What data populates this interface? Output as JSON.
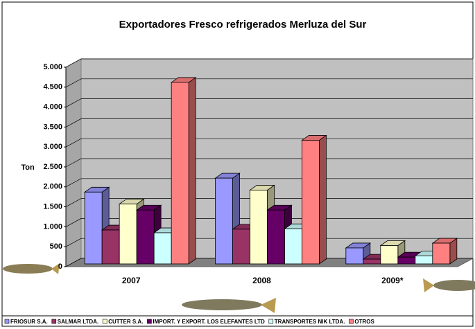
{
  "chart_data": {
    "type": "bar3d",
    "title": "Exportadores Fresco refrigerados Merluza del Sur",
    "y_label": "Ton",
    "categories": [
      "2007",
      "2008",
      "2009*"
    ],
    "series": [
      {
        "name": "FRIOSUR S.A.",
        "color": "#9999ff",
        "values": [
          1800,
          2150,
          400
        ]
      },
      {
        "name": "SALMAR LTDA.",
        "color": "#993366",
        "values": [
          850,
          870,
          120
        ]
      },
      {
        "name": "CUTTER S.A.",
        "color": "#ffffcc",
        "values": [
          1500,
          1850,
          460
        ]
      },
      {
        "name": "IMPORT. Y EXPORT. LOS ELEFANTES LTD",
        "color": "#660066",
        "values": [
          1350,
          1350,
          170
        ]
      },
      {
        "name": "TRANSPORTES NIK LTDA.",
        "color": "#ccffff",
        "values": [
          780,
          880,
          200
        ]
      },
      {
        "name": "OTROS",
        "color": "#ff8080",
        "values": [
          4550,
          3100,
          520
        ]
      }
    ],
    "ylim": [
      0,
      5000
    ],
    "yticks": [
      0,
      500,
      {
        "value": 1000,
        "label": "1.000"
      },
      {
        "value": 1500,
        "label": "1.500"
      },
      {
        "value": 2000,
        "label": "2.000"
      },
      {
        "value": 2500,
        "label": "2.500"
      },
      {
        "value": 3000,
        "label": "3.000"
      },
      {
        "value": 3500,
        "label": "3.500"
      },
      {
        "value": 4000,
        "label": "4.000"
      },
      {
        "value": 4500,
        "label": "4.500"
      },
      {
        "value": 5000,
        "label": "5.000"
      }
    ],
    "grid": true
  }
}
